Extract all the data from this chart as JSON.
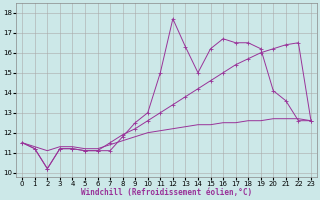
{
  "xlabel": "Windchill (Refroidissement éolien,°C)",
  "bg_color": "#cce8e8",
  "grid_color": "#aaaaaa",
  "line_color": "#993399",
  "xlim": [
    -0.5,
    23.5
  ],
  "ylim": [
    9.8,
    18.5
  ],
  "yticks": [
    10,
    11,
    12,
    13,
    14,
    15,
    16,
    17,
    18
  ],
  "xticks": [
    0,
    1,
    2,
    3,
    4,
    5,
    6,
    7,
    8,
    9,
    10,
    11,
    12,
    13,
    14,
    15,
    16,
    17,
    18,
    19,
    20,
    21,
    22,
    23
  ],
  "series1_x": [
    0,
    1,
    2,
    3,
    4,
    5,
    6,
    7,
    8,
    9,
    10,
    11,
    12,
    13,
    14,
    15,
    16,
    17,
    18,
    19,
    20,
    21,
    22,
    23
  ],
  "series1_y": [
    11.5,
    11.2,
    10.2,
    11.2,
    11.2,
    11.1,
    11.1,
    11.1,
    11.8,
    12.5,
    13.0,
    15.0,
    17.7,
    16.3,
    15.0,
    16.2,
    16.7,
    16.5,
    16.5,
    16.2,
    14.1,
    13.6,
    12.6,
    12.6
  ],
  "series2_x": [
    0,
    1,
    2,
    3,
    4,
    5,
    6,
    7,
    8,
    9,
    10,
    11,
    12,
    13,
    14,
    15,
    16,
    17,
    18,
    19,
    20,
    21,
    22,
    23
  ],
  "series2_y": [
    11.5,
    11.2,
    10.2,
    11.2,
    11.2,
    11.1,
    11.1,
    11.5,
    11.9,
    12.2,
    12.6,
    13.0,
    13.4,
    13.8,
    14.2,
    14.6,
    15.0,
    15.4,
    15.7,
    16.0,
    16.2,
    16.4,
    16.5,
    12.6
  ],
  "series3_x": [
    0,
    1,
    2,
    3,
    4,
    5,
    6,
    7,
    8,
    9,
    10,
    11,
    12,
    13,
    14,
    15,
    16,
    17,
    18,
    19,
    20,
    21,
    22,
    23
  ],
  "series3_y": [
    11.5,
    11.3,
    11.1,
    11.3,
    11.3,
    11.2,
    11.2,
    11.4,
    11.6,
    11.8,
    12.0,
    12.1,
    12.2,
    12.3,
    12.4,
    12.4,
    12.5,
    12.5,
    12.6,
    12.6,
    12.7,
    12.7,
    12.7,
    12.6
  ],
  "tick_fontsize": 5,
  "xlabel_fontsize": 5.5
}
